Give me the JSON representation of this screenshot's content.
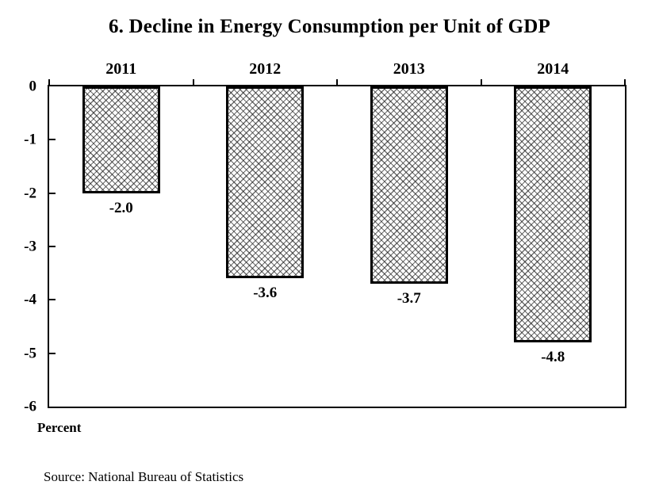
{
  "figure": {
    "source": "Source: National Bureau of Statistics"
  },
  "chart_data": {
    "type": "bar",
    "title": "6. Decline in Energy Consumption per Unit of GDP",
    "categories": [
      "2011",
      "2012",
      "2013",
      "2014"
    ],
    "values": [
      -2.0,
      -3.6,
      -3.7,
      -4.8
    ],
    "value_labels": [
      "-2.0",
      "-3.6",
      "-3.7",
      "-4.8"
    ],
    "xlabel": "",
    "ylabel": "Percent",
    "ylim": [
      -6,
      0
    ],
    "yticks": [
      0,
      -1,
      -2,
      -3,
      -4,
      -5,
      -6
    ],
    "grid": false,
    "legend": "none",
    "orientation": "vertical-negative",
    "bar_style": {
      "fill": "crosshatch",
      "pattern_color": "#333333",
      "border_color": "#000000",
      "background": "#ffffff"
    },
    "axis_color": "#000000",
    "background_color": "#ffffff"
  }
}
